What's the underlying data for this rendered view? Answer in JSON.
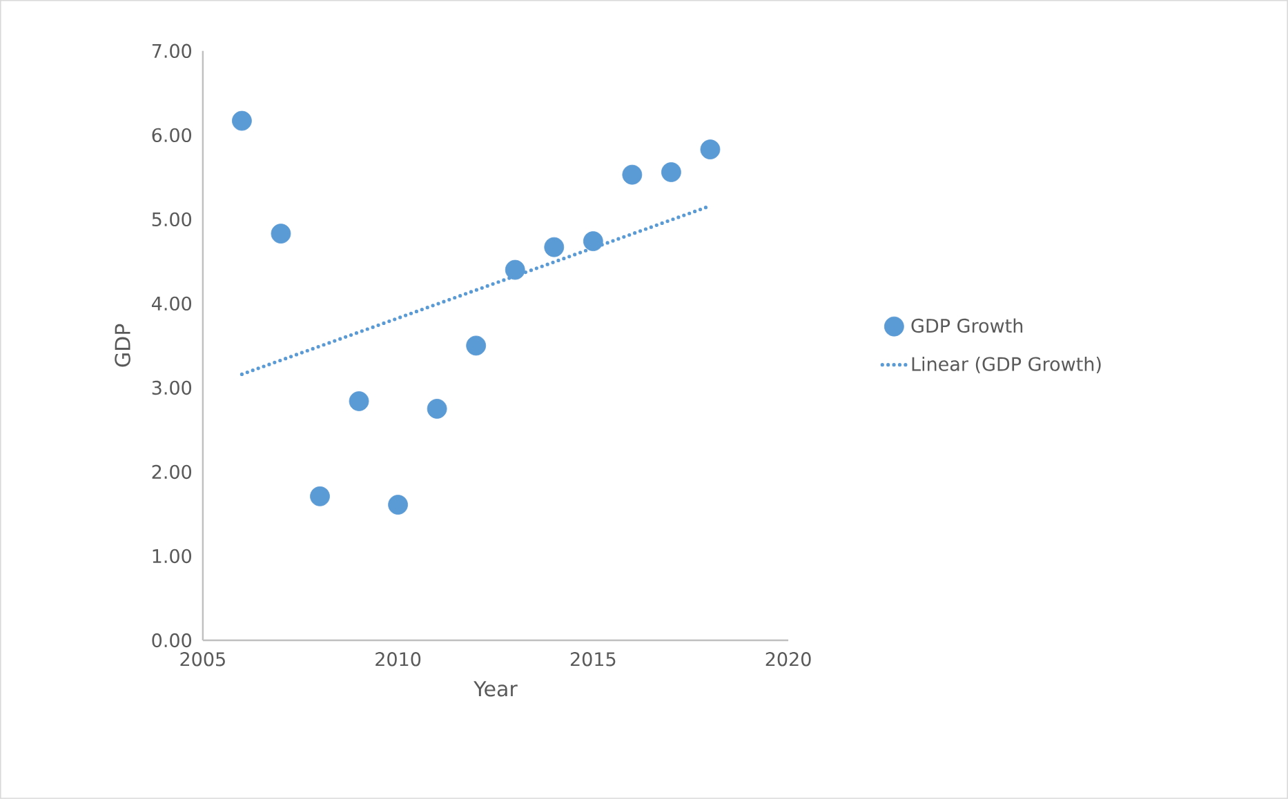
{
  "chart_data": {
    "type": "scatter",
    "xlabel": "Year",
    "ylabel": "GDP",
    "x": [
      2006,
      2007,
      2008,
      2009,
      2010,
      2011,
      2012,
      2013,
      2014,
      2015,
      2016,
      2017,
      2018
    ],
    "xlim": [
      2005,
      2020
    ],
    "xticks": [
      2005,
      2010,
      2015,
      2020
    ],
    "ylim": [
      0,
      7
    ],
    "yticks": [
      {
        "value": 0,
        "label": "0.00"
      },
      {
        "value": 1,
        "label": "1.00"
      },
      {
        "value": 2,
        "label": "2.00"
      },
      {
        "value": 3,
        "label": "3.00"
      },
      {
        "value": 4,
        "label": "4.00"
      },
      {
        "value": 5,
        "label": "5.00"
      },
      {
        "value": 6,
        "label": "6.00"
      },
      {
        "value": 7,
        "label": "7.00"
      }
    ],
    "grid": false,
    "legend": "right",
    "marker": "circle",
    "series": [
      {
        "name": "GDP Growth",
        "color": "#5b9bd5",
        "values": [
          6.17,
          4.83,
          1.71,
          2.84,
          1.61,
          2.75,
          3.5,
          4.4,
          4.67,
          4.74,
          5.53,
          5.56,
          5.83
        ]
      },
      {
        "name": "Linear (GDP Growth)",
        "type": "line",
        "color": "#5b9bd5",
        "x": [
          2006,
          2018
        ],
        "values": [
          3.16,
          5.16
        ],
        "line_style": "dotted",
        "marker": "none"
      }
    ]
  }
}
